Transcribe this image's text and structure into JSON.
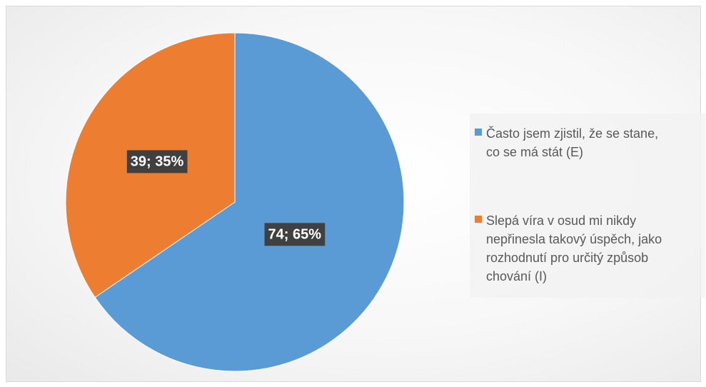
{
  "chart_data": {
    "type": "pie",
    "categories": [
      "Často jsem zjistil, že se stane, co se má stát (E)",
      "Slepá víra v osud mi nikdy nepřinesla takový úspěch, jako rozhodnutí pro určitý způsob chování (I)"
    ],
    "values": [
      74,
      39
    ],
    "percentages": [
      65,
      35
    ],
    "data_labels": [
      "74; 65%",
      "39; 35%"
    ],
    "colors": [
      "#5b9bd5",
      "#ed7d31"
    ],
    "legend_position": "right",
    "start_angle_deg": 0,
    "direction": "clockwise"
  },
  "legend": {
    "items": [
      {
        "label": "Často jsem zjistil, že se stane,\nco se má stát (E)",
        "color": "#5b9bd5"
      },
      {
        "label": "Slepá víra v osud mi nikdy\nnepřinesla takový úspěch, jako\nrozhodnutí pro určitý způsob\nchování (I)",
        "color": "#ed7d31"
      }
    ]
  }
}
